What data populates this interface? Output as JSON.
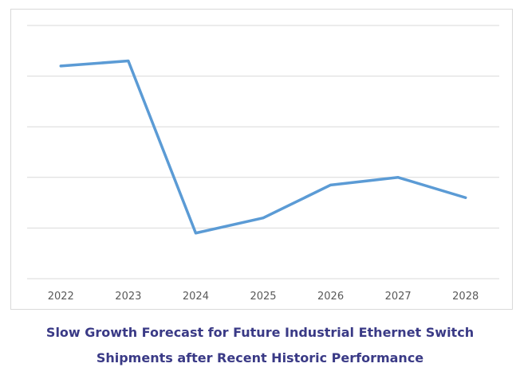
{
  "chart_data": {
    "type": "line",
    "categories": [
      "2022",
      "2023",
      "2024",
      "2025",
      "2026",
      "2027",
      "2028"
    ],
    "series": [
      {
        "values": [
          4.2,
          4.3,
          0.9,
          1.2,
          1.85,
          2.0,
          1.6
        ],
        "color": "#5b9bd5"
      }
    ],
    "ylim": [
      0,
      5
    ],
    "grid": true,
    "gridline_count": 5,
    "show_y_tick_labels": false,
    "legend": "none"
  },
  "caption": {
    "line1": "Slow Growth Forecast for Future Industrial Ethernet Switch",
    "line2": "Shipments after Recent Historic Performance"
  }
}
